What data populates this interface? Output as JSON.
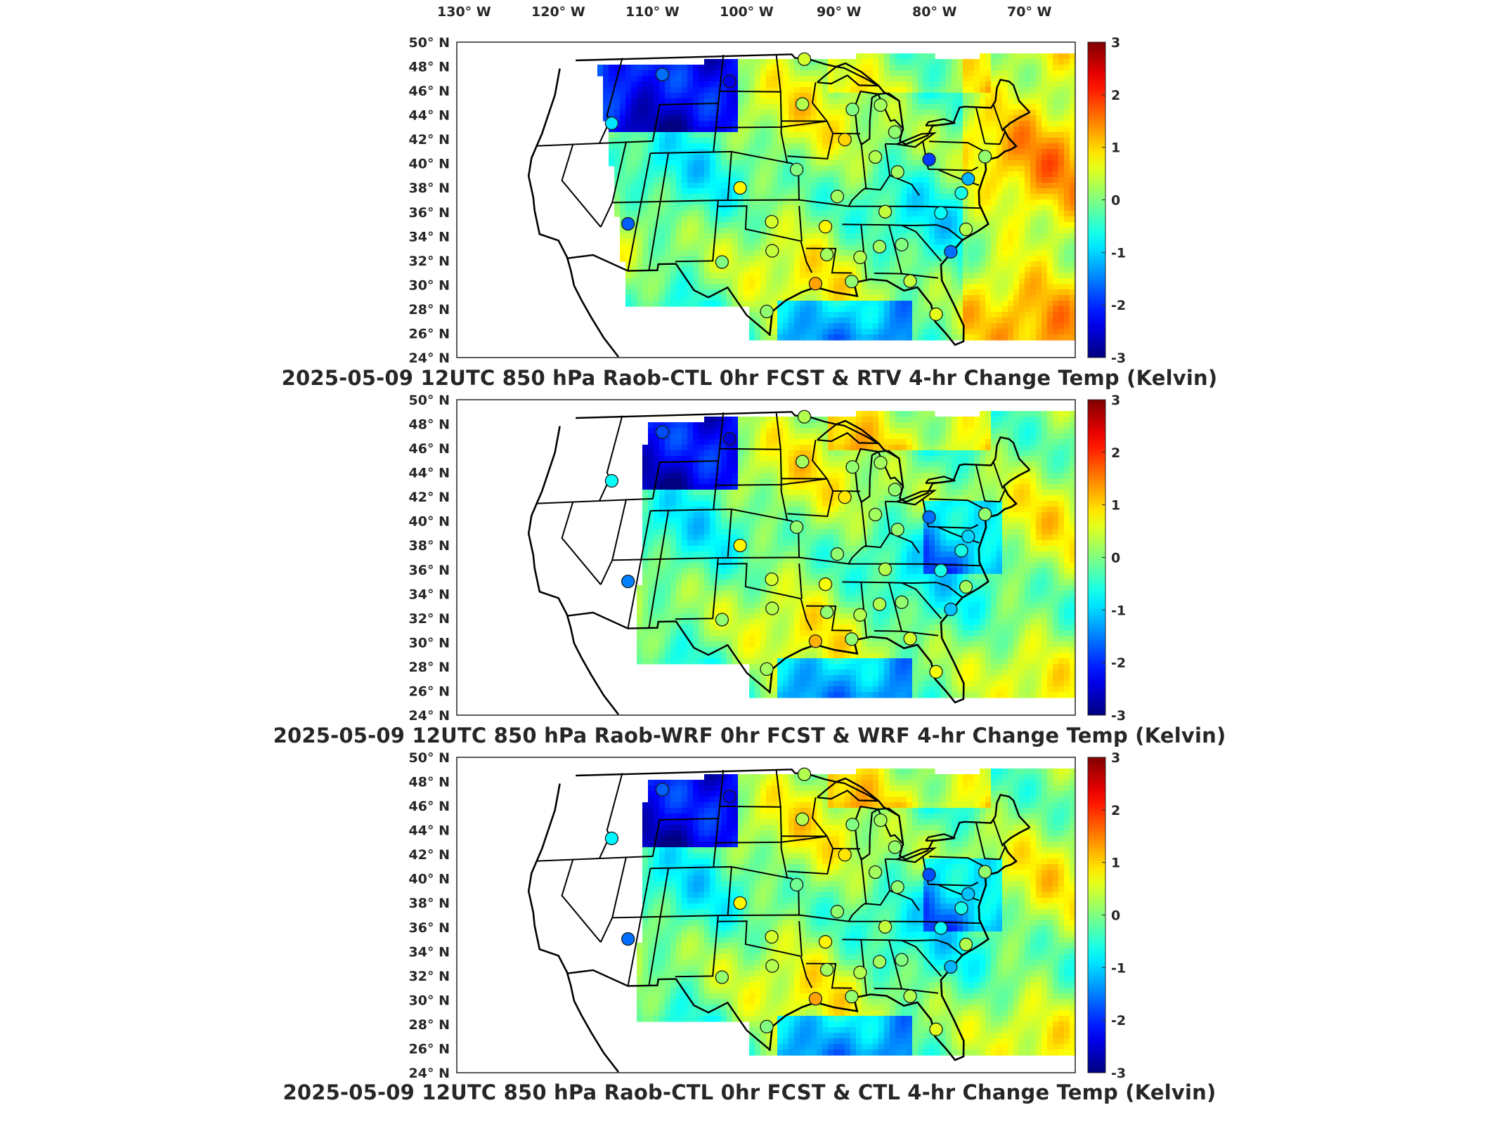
{
  "figure": {
    "lon_labels": [
      "130° W",
      "120° W",
      "110° W",
      "100° W",
      "90° W",
      "80° W",
      "70° W"
    ],
    "lat_labels": [
      "50° N",
      "48° N",
      "46° N",
      "44° N",
      "42° N",
      "40° N",
      "38° N",
      "36° N",
      "34° N",
      "32° N",
      "30° N",
      "28° N",
      "26° N",
      "24° N"
    ],
    "colorbar_ticks": [
      "3",
      "2",
      "1",
      "0",
      "-1",
      "-2",
      "-3"
    ],
    "colormap": "jet",
    "colorbar_range": [
      -3,
      3
    ],
    "units": "Kelvin"
  },
  "panels": [
    {
      "title": "2025-05-09 12UTC 850 hPa Raob-CTL 0hr FCST & RTV 4-hr Change Temp (Kelvin)"
    },
    {
      "title": "2025-05-09 12UTC 850 hPa Raob-WRF 0hr FCST & WRF 4-hr Change Temp (Kelvin)"
    },
    {
      "title": "2025-05-09 12UTC 850 hPa Raob-CTL 0hr FCST & CTL 4-hr Change Temp (Kelvin)"
    }
  ],
  "raob_stations": [
    {
      "lon": -111.4,
      "lat": 47.5,
      "v": [
        -1.6,
        -1.8,
        -1.7
      ]
    },
    {
      "lon": -102.9,
      "lat": 46.8,
      "v": [
        -2.4,
        -2.5,
        -2.4
      ]
    },
    {
      "lon": -93.6,
      "lat": 48.6,
      "v": [
        0.5,
        0.3,
        0.3
      ]
    },
    {
      "lon": -116.2,
      "lat": 43.6,
      "v": [
        -0.9,
        -0.7,
        -0.8
      ]
    },
    {
      "lon": -111.9,
      "lat": 35.2,
      "v": [
        -1.7,
        -1.5,
        -1.6
      ]
    },
    {
      "lon": -100.8,
      "lat": 38.0,
      "v": [
        0.8,
        0.8,
        0.8
      ]
    },
    {
      "lon": -94.0,
      "lat": 44.9,
      "v": [
        0.3,
        0.2,
        0.3
      ]
    },
    {
      "lon": -97.4,
      "lat": 35.2,
      "v": [
        0.5,
        0.5,
        0.5
      ]
    },
    {
      "lon": -92.0,
      "lat": 34.8,
      "v": [
        0.8,
        0.7,
        0.8
      ]
    },
    {
      "lon": -97.3,
      "lat": 32.8,
      "v": [
        0.4,
        0.3,
        0.3
      ]
    },
    {
      "lon": -102.1,
      "lat": 31.9,
      "v": [
        0.0,
        0.1,
        0.1
      ]
    },
    {
      "lon": -92.0,
      "lat": 32.5,
      "v": [
        0.2,
        0.1,
        0.2
      ]
    },
    {
      "lon": -97.7,
      "lat": 27.8,
      "v": [
        0.1,
        0.2,
        0.0
      ]
    },
    {
      "lon": -93.2,
      "lat": 30.1,
      "v": [
        1.3,
        1.2,
        1.3
      ]
    },
    {
      "lon": -89.8,
      "lat": 30.3,
      "v": [
        0.1,
        0.1,
        0.1
      ]
    },
    {
      "lon": -88.8,
      "lat": 32.3,
      "v": [
        0.3,
        0.3,
        0.3
      ]
    },
    {
      "lon": -86.8,
      "lat": 33.2,
      "v": [
        0.2,
        0.3,
        0.2
      ]
    },
    {
      "lon": -84.6,
      "lat": 33.4,
      "v": [
        0.0,
        0.1,
        0.0
      ]
    },
    {
      "lon": -84.3,
      "lat": 30.4,
      "v": [
        0.4,
        0.5,
        0.3
      ]
    },
    {
      "lon": -82.4,
      "lat": 27.7,
      "v": [
        0.6,
        0.7,
        0.6
      ]
    },
    {
      "lon": -79.9,
      "lat": 32.9,
      "v": [
        -1.6,
        -1.1,
        -1.2
      ]
    },
    {
      "lon": -77.9,
      "lat": 34.8,
      "v": [
        0.3,
        0.2,
        0.3
      ]
    },
    {
      "lon": -80.1,
      "lat": 36.1,
      "v": [
        -0.7,
        -0.6,
        -0.7
      ]
    },
    {
      "lon": -83.9,
      "lat": 39.4,
      "v": [
        0.2,
        0.1,
        0.1
      ]
    },
    {
      "lon": -80.2,
      "lat": 40.5,
      "v": [
        -1.9,
        -1.6,
        -1.8
      ]
    },
    {
      "lon": -76.4,
      "lat": 39.0,
      "v": [
        -1.2,
        -1.0,
        -1.1
      ]
    },
    {
      "lon": -77.5,
      "lat": 37.8,
      "v": [
        -0.6,
        -0.6,
        -0.6
      ]
    },
    {
      "lon": -86.1,
      "lat": 40.6,
      "v": [
        0.3,
        0.2,
        0.2
      ]
    },
    {
      "lon": -89.3,
      "lat": 42.0,
      "v": [
        1.0,
        0.9,
        0.9
      ]
    },
    {
      "lon": -88.1,
      "lat": 44.5,
      "v": [
        0.0,
        0.1,
        0.0
      ]
    },
    {
      "lon": -84.7,
      "lat": 44.9,
      "v": [
        0.2,
        0.2,
        0.2
      ]
    },
    {
      "lon": -83.5,
      "lat": 42.7,
      "v": [
        0.1,
        0.1,
        0.1
      ]
    },
    {
      "lon": -94.8,
      "lat": 39.5,
      "v": [
        0.0,
        0.1,
        -0.1
      ]
    },
    {
      "lon": -90.6,
      "lat": 37.3,
      "v": [
        0.2,
        0.1,
        0.1
      ]
    },
    {
      "lon": -85.8,
      "lat": 36.1,
      "v": [
        0.4,
        0.3,
        0.4
      ]
    },
    {
      "lon": -73.9,
      "lat": 40.9,
      "v": [
        0.1,
        0.1,
        0.1
      ]
    }
  ]
}
